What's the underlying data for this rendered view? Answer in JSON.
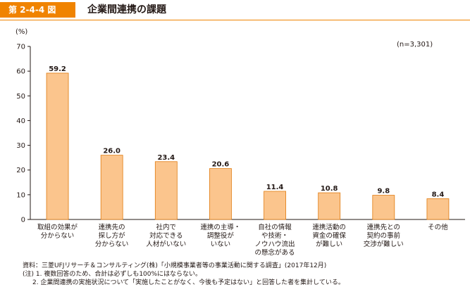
{
  "header": {
    "figure_number": "第 2-4-4 図",
    "title": "企業間連携の課題"
  },
  "colors": {
    "accent": "#f08300",
    "bar_fill": "#fbc58d",
    "bar_stroke": "#e07b10",
    "axis": "#231815"
  },
  "chart_data": {
    "type": "bar",
    "title": "企業間連携の課題",
    "ylabel": "(%)",
    "xlabel": "",
    "ylim": [
      0,
      70
    ],
    "yticks": [
      "0",
      "10",
      "20",
      "30",
      "40",
      "50",
      "60",
      "70"
    ],
    "sample_note": "(n=3,301)",
    "grid": false,
    "categories": [
      [
        "取組の効果が",
        "分からない"
      ],
      [
        "連携先の",
        "探し方が",
        "分からない"
      ],
      [
        "社内で",
        "対応できる",
        "人材がいない"
      ],
      [
        "連携の主導・",
        "調整役が",
        "いない"
      ],
      [
        "自社の情報",
        "や技術・",
        "ノウハウ流出",
        "の懸念がある"
      ],
      [
        "連携活動の",
        "資金の確保",
        "が難しい"
      ],
      [
        "連携先との",
        "契約の事前",
        "交渉が難しい"
      ],
      [
        "その他"
      ]
    ],
    "values": [
      59.2,
      26.0,
      23.4,
      20.6,
      11.4,
      10.8,
      9.8,
      8.4
    ],
    "value_labels": [
      "59.2",
      "26.0",
      "23.4",
      "20.6",
      "11.4",
      "10.8",
      "9.8",
      "8.4"
    ]
  },
  "notes": {
    "source": "資料：三菱UFJリサーチ＆コンサルティング(株)「小規模事業者等の事業活動に関する調査」(2017年12月)",
    "note1": "(注) 1. 複数回答のため、合計は必ずしも100%にはならない。",
    "note2": "2. 企業間連携の実施状況について「実施したことがなく、今後も予定はない」と回答した者を集計している。"
  }
}
